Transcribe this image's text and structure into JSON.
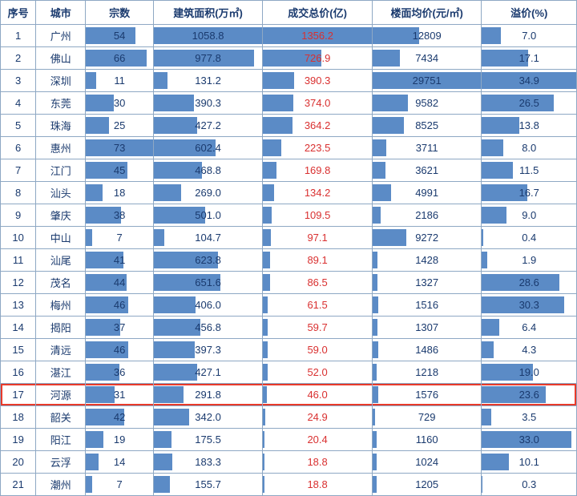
{
  "table": {
    "headers": [
      "序号",
      "城市",
      "宗数",
      "建筑面积(万㎡)",
      "成交总价(亿)",
      "楼面均价(元/㎡)",
      "溢价(%)"
    ],
    "highlight_index": 16,
    "bar_color": "#5b8bc6",
    "border_color": "#8ea8c4",
    "text_color": "#1a3a6e",
    "red_text_color": "#d93030",
    "highlight_border_color": "#e83a2a",
    "columns_meta": [
      {
        "key": "idx",
        "type": "plain"
      },
      {
        "key": "city",
        "type": "plain"
      },
      {
        "key": "count",
        "type": "bar",
        "max": 73,
        "decimals": 0
      },
      {
        "key": "area",
        "type": "bar",
        "max": 1058.8,
        "decimals": 1
      },
      {
        "key": "total",
        "type": "bar",
        "max": 1356.2,
        "decimals": 1,
        "red": true
      },
      {
        "key": "price",
        "type": "bar",
        "max": 29751,
        "decimals": 0
      },
      {
        "key": "prem",
        "type": "bar",
        "max": 34.9,
        "decimals": 1
      }
    ],
    "rows": [
      {
        "idx": 1,
        "city": "广州",
        "count": 54,
        "area": 1058.8,
        "total": 1356.2,
        "price": 12809,
        "prem": 7.0
      },
      {
        "idx": 2,
        "city": "佛山",
        "count": 66,
        "area": 977.8,
        "total": 726.9,
        "price": 7434,
        "prem": 17.1
      },
      {
        "idx": 3,
        "city": "深圳",
        "count": 11,
        "area": 131.2,
        "total": 390.3,
        "price": 29751,
        "prem": 34.9
      },
      {
        "idx": 4,
        "city": "东莞",
        "count": 30,
        "area": 390.3,
        "total": 374.0,
        "price": 9582,
        "prem": 26.5
      },
      {
        "idx": 5,
        "city": "珠海",
        "count": 25,
        "area": 427.2,
        "total": 364.2,
        "price": 8525,
        "prem": 13.8
      },
      {
        "idx": 6,
        "city": "惠州",
        "count": 73,
        "area": 602.4,
        "total": 223.5,
        "price": 3711,
        "prem": 8.0
      },
      {
        "idx": 7,
        "city": "江门",
        "count": 45,
        "area": 468.8,
        "total": 169.8,
        "price": 3621,
        "prem": 11.5
      },
      {
        "idx": 8,
        "city": "汕头",
        "count": 18,
        "area": 269.0,
        "total": 134.2,
        "price": 4991,
        "prem": 16.7
      },
      {
        "idx": 9,
        "city": "肇庆",
        "count": 38,
        "area": 501.0,
        "total": 109.5,
        "price": 2186,
        "prem": 9.0
      },
      {
        "idx": 10,
        "city": "中山",
        "count": 7,
        "area": 104.7,
        "total": 97.1,
        "price": 9272,
        "prem": 0.4
      },
      {
        "idx": 11,
        "city": "汕尾",
        "count": 41,
        "area": 623.8,
        "total": 89.1,
        "price": 1428,
        "prem": 1.9
      },
      {
        "idx": 12,
        "city": "茂名",
        "count": 44,
        "area": 651.6,
        "total": 86.5,
        "price": 1327,
        "prem": 28.6
      },
      {
        "idx": 13,
        "city": "梅州",
        "count": 46,
        "area": 406.0,
        "total": 61.5,
        "price": 1516,
        "prem": 30.3
      },
      {
        "idx": 14,
        "city": "揭阳",
        "count": 37,
        "area": 456.8,
        "total": 59.7,
        "price": 1307,
        "prem": 6.4
      },
      {
        "idx": 15,
        "city": "清远",
        "count": 46,
        "area": 397.3,
        "total": 59.0,
        "price": 1486,
        "prem": 4.3
      },
      {
        "idx": 16,
        "city": "湛江",
        "count": 36,
        "area": 427.1,
        "total": 52.0,
        "price": 1218,
        "prem": 19.0
      },
      {
        "idx": 17,
        "city": "河源",
        "count": 31,
        "area": 291.8,
        "total": 46.0,
        "price": 1576,
        "prem": 23.6
      },
      {
        "idx": 18,
        "city": "韶关",
        "count": 42,
        "area": 342.0,
        "total": 24.9,
        "price": 729,
        "prem": 3.5
      },
      {
        "idx": 19,
        "city": "阳江",
        "count": 19,
        "area": 175.5,
        "total": 20.4,
        "price": 1160,
        "prem": 33.0
      },
      {
        "idx": 20,
        "city": "云浮",
        "count": 14,
        "area": 183.3,
        "total": 18.8,
        "price": 1024,
        "prem": 10.1
      },
      {
        "idx": 21,
        "city": "潮州",
        "count": 7,
        "area": 155.7,
        "total": 18.8,
        "price": 1205,
        "prem": 0.3
      }
    ]
  }
}
